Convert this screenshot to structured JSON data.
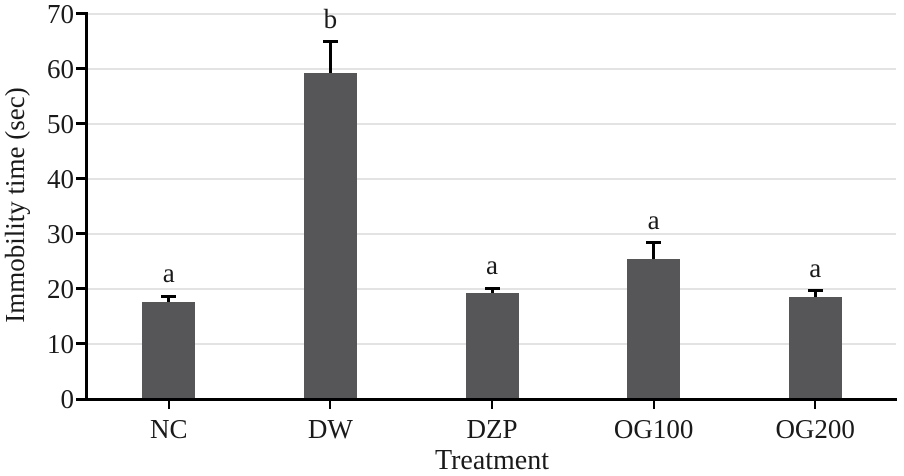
{
  "chart_data": {
    "type": "bar",
    "title": "",
    "xlabel": "Treatment",
    "ylabel": "Immobility time (sec)",
    "categories": [
      "NC",
      "DW",
      "DZP",
      "OG100",
      "OG200"
    ],
    "values": [
      17.7,
      59.2,
      19.2,
      25.5,
      18.6
    ],
    "errors_plus": [
      1.0,
      5.7,
      0.9,
      2.9,
      1.1
    ],
    "significance_letters": [
      "a",
      "b",
      "a",
      "a",
      "a"
    ],
    "ylim": [
      0,
      70
    ],
    "yticks": [
      0,
      10,
      20,
      30,
      40,
      50,
      60,
      70
    ],
    "ytick_step": 10,
    "grid": true,
    "legend_position": "none",
    "bar_color": "#565659",
    "gridline_color": "#e3e3e3",
    "axis_color": "#000000",
    "text_color": "#1a1a1a"
  }
}
